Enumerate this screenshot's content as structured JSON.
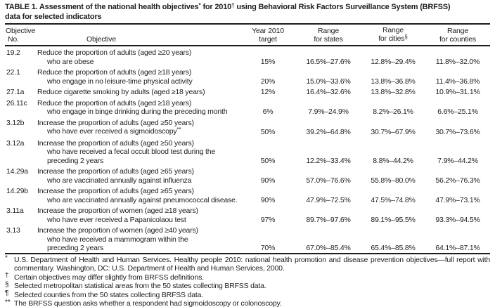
{
  "title": {
    "line1_parts": [
      {
        "t": "TABLE 1. Assessment of the national health objectives"
      },
      {
        "t": "*",
        "sup": true
      },
      {
        "t": " for 2010"
      },
      {
        "t": "†",
        "sup": true
      },
      {
        "t": " using Behavioral Risk Factors Surveillance System (BRFSS)"
      }
    ],
    "line2": "data for selected indicators"
  },
  "columns": [
    {
      "id": "objective-no",
      "line1": "Objective",
      "line2": "No."
    },
    {
      "id": "objective",
      "line1": "",
      "line2": "Objective"
    },
    {
      "id": "target",
      "line1": "Year 2010",
      "line2": "target"
    },
    {
      "id": "states",
      "line1": "Range",
      "line2": "for states"
    },
    {
      "id": "cities",
      "line1": "Range",
      "line2": "for cities",
      "line2_sup": "§"
    },
    {
      "id": "counties",
      "line1": "Range",
      "line2": "for counties"
    }
  ],
  "rows": [
    {
      "no": "19.2",
      "lines": [
        "Reduce the proportion of adults (aged ≥20 years)",
        "who are obese"
      ],
      "target": "15%",
      "states": "16.5%–27.6%",
      "cities": "12.8%–29.4%",
      "counties": "11.8%–32.0%"
    },
    {
      "no": "22.1",
      "lines": [
        "Reduce the proportion of adults (aged ≥18 years)",
        "who engage in no leisure-time physical activity"
      ],
      "target": "20%",
      "states": "15.0%–33.6%",
      "cities": "13.8%–36.8%",
      "counties": "11.4%–36.8%"
    },
    {
      "no": "27.1a",
      "lines": [
        "Reduce cigarette smoking by adults (aged ≥18 years)"
      ],
      "target": "12%",
      "states": "16.4%–32.6%",
      "cities": "13.8%–32.8%",
      "counties": "10.9%–31.1%"
    },
    {
      "no": "26.11c",
      "lines": [
        "Reduce the proportion of adults (aged ≥18 years)",
        "who engage in binge drinking during the preceding month"
      ],
      "target": "6%",
      "states": "7.9%–24.9%",
      "cities": "8.2%–26.1%",
      "counties": "6.6%–25.1%"
    },
    {
      "no": "3.12b",
      "lines": [
        "Increase the proportion of adults (aged ≥50 years)",
        {
          "t": "who have ever received a sigmoidoscopy",
          "sup": "**"
        }
      ],
      "target": "50%",
      "states": "39.2%–64.8%",
      "cities": "30.7%–67.9%",
      "counties": "30.7%–73.6%"
    },
    {
      "no": "3.12a",
      "lines": [
        "Increase the proportion of adults (aged ≥50 years)",
        "who have received a fecal occult blood test during the",
        "preceding 2 years"
      ],
      "target": "50%",
      "states": "12.2%–33.4%",
      "cities": "8.8%–44.2%",
      "counties": "7.9%–44.2%"
    },
    {
      "no": "14.29a",
      "lines": [
        "Increase the proportion of adults (aged ≥65 years)",
        "who are vaccinated annually against influenza"
      ],
      "target": "90%",
      "states": "57.0%–76.6%",
      "cities": "55.8%–80.0%",
      "counties": "56.2%–76.3%"
    },
    {
      "no": "14.29b",
      "lines": [
        "Increase the proportion of adults (aged ≥65 years)",
        "who are vaccinated annually against pneumococcal disease."
      ],
      "target": "90%",
      "states": "47.9%–72.5%",
      "cities": "47.5%–74.8%",
      "counties": "47.9%–73.1%"
    },
    {
      "no": "3.11a",
      "lines": [
        "Increase the proportion of women (aged ≥18 years)",
        "who have ever received a Papanicolaou test"
      ],
      "target": "97%",
      "states": "89.7%–97.6%",
      "cities": "89.1%–95.5%",
      "counties": "93.3%–94.5%"
    },
    {
      "no": "3.13",
      "lines": [
        "Increase the proportion of women (aged ≥40 years)",
        "who have received a mammogram within the",
        "preceding 2 years"
      ],
      "target": "70%",
      "states": "67.0%–85.4%",
      "cities": "65.4%–85.8%",
      "counties": "64.1%–87.1%"
    }
  ],
  "footnotes": [
    {
      "sym": "*",
      "text": "U.S. Department of Health and Human Services. Healthy people 2010: national health promotion and disease prevention objectives—full report with commentary. Washington, DC: U.S. Department of Health and Human Services, 2000.",
      "justify": true
    },
    {
      "sym": "†",
      "text": "Certain objectives may differ slightly from BRFSS definitions."
    },
    {
      "sym": "§",
      "text": "Selected metropolitan statistical areas from the 50 states collecting BRFSS data."
    },
    {
      "sym": "¶",
      "text": "Selected counties from the 50 states collecting BRFSS data."
    },
    {
      "sym": "**",
      "text": "The BRFSS question asks whether a respondent had sigmoidoscopy or colonoscopy."
    }
  ],
  "colors": {
    "text": "#1e1e1e",
    "rule": "#1c1c1c",
    "background": "#ffffff"
  }
}
